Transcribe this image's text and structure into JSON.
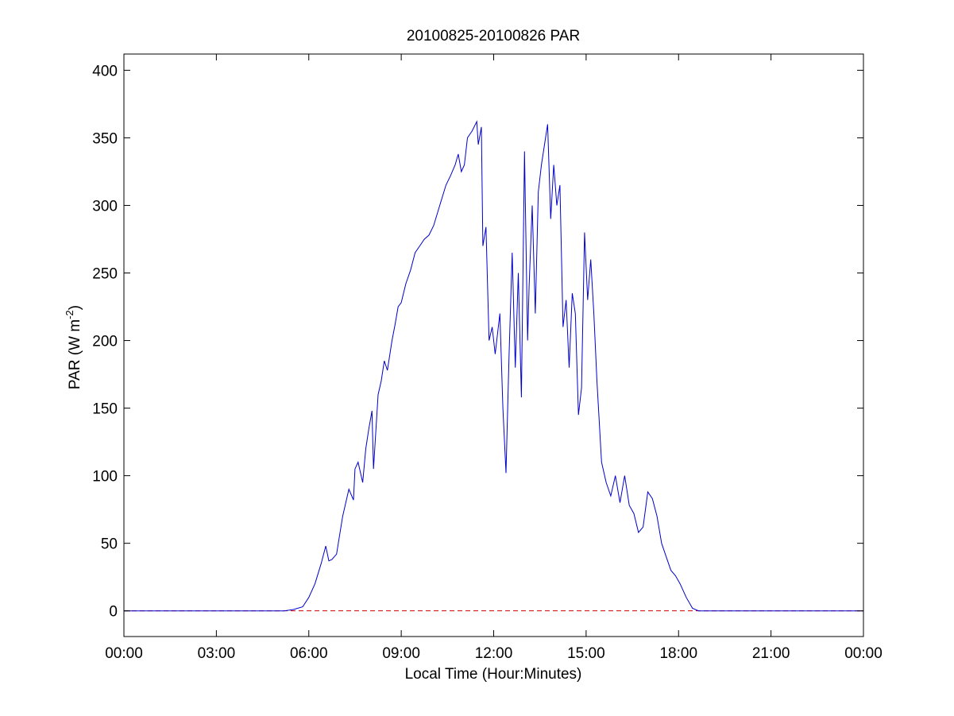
{
  "chart_data": {
    "type": "line",
    "title": "20100825-20100826 PAR",
    "xlabel": "Local Time (Hour:Minutes)",
    "ylabel_main": "PAR (W m",
    "ylabel_sup": "-2",
    "ylabel_close": ")",
    "x_ticks": [
      "00:00",
      "03:00",
      "06:00",
      "09:00",
      "12:00",
      "15:00",
      "18:00",
      "21:00",
      "00:00"
    ],
    "y_ticks": [
      "0",
      "50",
      "100",
      "150",
      "200",
      "250",
      "300",
      "350",
      "400"
    ],
    "xlim_hours": [
      0,
      24
    ],
    "ylim": [
      -19,
      412
    ],
    "grid": false,
    "reference_line": {
      "y": 0,
      "style": "dashed",
      "color": "#cc0000"
    },
    "series": [
      {
        "color": "#0000cc",
        "x_hours": [
          0,
          5.2,
          5.5,
          5.8,
          6.0,
          6.2,
          6.4,
          6.55,
          6.65,
          6.75,
          6.9,
          7.1,
          7.3,
          7.45,
          7.5,
          7.6,
          7.75,
          7.85,
          7.95,
          8.05,
          8.1,
          8.25,
          8.35,
          8.45,
          8.55,
          8.7,
          8.8,
          8.9,
          9.0,
          9.15,
          9.3,
          9.45,
          9.6,
          9.75,
          9.9,
          10.05,
          10.25,
          10.45,
          10.6,
          10.75,
          10.85,
          10.95,
          11.05,
          11.15,
          11.3,
          11.45,
          11.5,
          11.6,
          11.65,
          11.75,
          11.85,
          11.95,
          12.05,
          12.2,
          12.3,
          12.4,
          12.5,
          12.6,
          12.7,
          12.8,
          12.9,
          13.0,
          13.1,
          13.15,
          13.25,
          13.35,
          13.45,
          13.55,
          13.65,
          13.75,
          13.85,
          13.95,
          14.05,
          14.15,
          14.25,
          14.35,
          14.45,
          14.55,
          14.65,
          14.75,
          14.85,
          14.95,
          15.05,
          15.15,
          15.25,
          15.35,
          15.5,
          15.65,
          15.8,
          15.95,
          16.1,
          16.25,
          16.4,
          16.55,
          16.7,
          16.85,
          17.0,
          17.15,
          17.3,
          17.45,
          17.6,
          17.75,
          17.9,
          18.05,
          18.25,
          18.45,
          18.65,
          18.8,
          19.0,
          19.5,
          24
        ],
        "values": [
          0,
          0,
          1,
          3,
          10,
          20,
          35,
          48,
          37,
          38,
          42,
          70,
          90,
          82,
          105,
          110,
          95,
          120,
          135,
          148,
          105,
          160,
          170,
          185,
          178,
          200,
          212,
          225,
          228,
          242,
          252,
          265,
          270,
          275,
          278,
          285,
          300,
          315,
          322,
          330,
          338,
          325,
          330,
          350,
          355,
          362,
          345,
          358,
          270,
          284,
          200,
          210,
          190,
          220,
          150,
          102,
          190,
          265,
          180,
          250,
          158,
          340,
          200,
          240,
          300,
          220,
          310,
          330,
          345,
          360,
          290,
          330,
          300,
          315,
          210,
          230,
          180,
          235,
          220,
          145,
          165,
          280,
          230,
          260,
          220,
          170,
          110,
          95,
          85,
          100,
          80,
          100,
          78,
          72,
          58,
          62,
          88,
          83,
          70,
          50,
          40,
          30,
          26,
          20,
          10,
          2,
          0,
          0,
          0,
          0,
          0
        ]
      }
    ]
  }
}
